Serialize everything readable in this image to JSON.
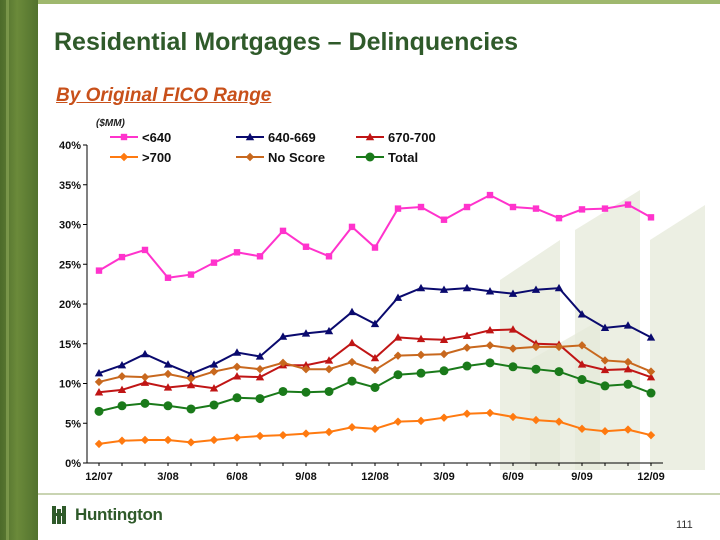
{
  "page": {
    "title": "Residential Mortgages – Delinquencies",
    "subtitle": "By Original FICO Range",
    "page_number": "111",
    "logo_text": "Huntington"
  },
  "colors": {
    "title": "#2f5a2a",
    "subtitle": "#c8501a",
    "lt640": "#ff33cc",
    "r640_669": "#0a0a6e",
    "r670_700": "#c01515",
    "gt700": "#ff7a10",
    "no_score": "#c8681e",
    "total": "#1a7a1a"
  },
  "chart_data": {
    "type": "line",
    "unit_label": "($MM)",
    "xlabel": "",
    "ylabel": "",
    "ylim": [
      0,
      40
    ],
    "y_ticks": [
      "0%",
      "5%",
      "10%",
      "15%",
      "20%",
      "25%",
      "30%",
      "35%",
      "40%"
    ],
    "x_tick_labels": [
      "12/07",
      "3/08",
      "6/08",
      "9/08",
      "12/08",
      "3/09",
      "6/09",
      "9/09",
      "12/09"
    ],
    "x": [
      "12/07",
      "1/08",
      "2/08",
      "3/08",
      "4/08",
      "5/08",
      "6/08",
      "7/08",
      "8/08",
      "9/08",
      "10/08",
      "11/08",
      "12/08",
      "1/09",
      "2/09",
      "3/09",
      "4/09",
      "5/09",
      "6/09",
      "7/09",
      "8/09",
      "9/09",
      "10/09",
      "11/09",
      "12/09"
    ],
    "legend_position": "top",
    "grid": false,
    "series": [
      {
        "name": "<640",
        "marker": "square",
        "color_key": "lt640",
        "values": [
          24.2,
          25.9,
          26.8,
          23.3,
          23.7,
          25.2,
          26.5,
          26.0,
          29.2,
          27.2,
          26.0,
          29.7,
          27.1,
          32.0,
          32.2,
          30.6,
          32.2,
          33.7,
          32.2,
          32.0,
          30.8,
          31.9,
          32.0,
          32.5,
          30.9
        ]
      },
      {
        "name": "640-669",
        "marker": "triangle",
        "color_key": "r640_669",
        "values": [
          11.3,
          12.3,
          13.7,
          12.4,
          11.2,
          12.4,
          13.9,
          13.4,
          15.9,
          16.3,
          16.6,
          19.0,
          17.5,
          20.8,
          22.0,
          21.8,
          22.0,
          21.6,
          21.3,
          21.8,
          22.0,
          18.7,
          17.0,
          17.3,
          15.8
        ]
      },
      {
        "name": "670-700",
        "marker": "triangle",
        "color_key": "r670_700",
        "values": [
          8.9,
          9.2,
          10.1,
          9.5,
          9.8,
          9.4,
          10.9,
          10.8,
          12.3,
          12.3,
          12.9,
          15.1,
          13.2,
          15.8,
          15.6,
          15.5,
          16.0,
          16.7,
          16.8,
          15.0,
          14.9,
          12.4,
          11.7,
          11.8,
          10.8
        ]
      },
      {
        "name": ">700",
        "marker": "diamond",
        "color_key": "gt700",
        "values": [
          2.4,
          2.8,
          2.9,
          2.9,
          2.6,
          2.9,
          3.2,
          3.4,
          3.5,
          3.7,
          3.9,
          4.5,
          4.3,
          5.2,
          5.3,
          5.7,
          6.2,
          6.3,
          5.8,
          5.4,
          5.2,
          4.3,
          4.0,
          4.2,
          3.5
        ]
      },
      {
        "name": "No Score",
        "marker": "diamond",
        "color_key": "no_score",
        "values": [
          10.2,
          10.9,
          10.8,
          11.2,
          10.6,
          11.5,
          12.1,
          11.8,
          12.6,
          11.8,
          11.8,
          12.7,
          11.7,
          13.5,
          13.6,
          13.7,
          14.5,
          14.8,
          14.4,
          14.6,
          14.6,
          14.8,
          12.9,
          12.7,
          11.5
        ]
      },
      {
        "name": "Total",
        "marker": "circle",
        "color_key": "total",
        "values": [
          6.5,
          7.2,
          7.5,
          7.2,
          6.8,
          7.3,
          8.2,
          8.1,
          9.0,
          8.9,
          9.0,
          10.3,
          9.5,
          11.1,
          11.3,
          11.6,
          12.2,
          12.6,
          12.1,
          11.8,
          11.5,
          10.5,
          9.7,
          9.9,
          8.8
        ]
      }
    ]
  }
}
